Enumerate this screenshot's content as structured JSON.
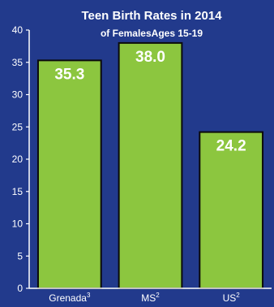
{
  "colors": {
    "background": "#223a8c",
    "bar_fill": "#8cc63f",
    "bar_stroke": "#0b0b0b",
    "text": "#ffffff",
    "axis": "#ffffff"
  },
  "chart_data": {
    "type": "bar",
    "title": "Teen Birth Rates in 2014",
    "subtitle": "of FemalesAges 15-19",
    "categories": [
      {
        "label": "Grenada",
        "sup": "3"
      },
      {
        "label": "MS",
        "sup": "2"
      },
      {
        "label": "US",
        "sup": "2"
      }
    ],
    "values": [
      35.3,
      38.0,
      24.2
    ],
    "data_labels": [
      "35.3",
      "38.0",
      "24.2"
    ],
    "ylim": [
      0,
      40
    ],
    "yticks": [
      0,
      5,
      10,
      15,
      20,
      25,
      30,
      35,
      40
    ],
    "grid": false,
    "legend": "none"
  }
}
